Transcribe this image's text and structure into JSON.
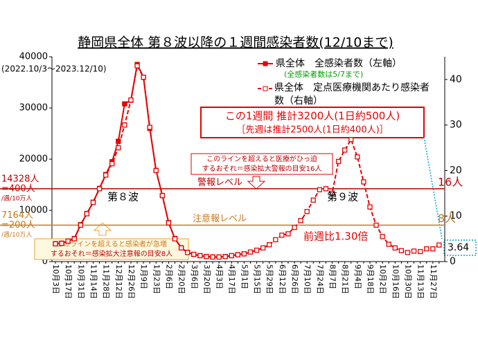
{
  "chart_data": {
    "type": "line",
    "title": "静岡県全体 第８波以降の１週間感染者数(12/10まで)",
    "subtitle": "(2022.10/3～2023.12/10)",
    "categories": [
      "10月3日",
      null,
      "10月17日",
      null,
      "10月31日",
      null,
      "11月14日",
      null,
      "11月28日",
      null,
      "12月12日",
      null,
      "12月26日",
      null,
      "1月9日",
      null,
      "1月23日",
      null,
      "2月6日",
      null,
      "2月20日",
      null,
      "3月6日",
      null,
      "3月20日",
      null,
      "4月3日",
      null,
      "4月17日",
      null,
      "5月1日",
      null,
      "5月15日",
      null,
      "5月29日",
      null,
      "6月12日",
      null,
      "6月26日",
      null,
      "7月10日",
      null,
      "7月24日",
      null,
      "8月7日",
      null,
      "8月21日",
      null,
      "9月4日",
      null,
      "9月18日",
      null,
      "10月2日",
      null,
      "10月16日",
      null,
      "10月30日",
      null,
      "11月13日",
      null,
      "11月27日",
      null
    ],
    "series": [
      {
        "name": "県全体　全感染者数（左軸）",
        "note": "(全感染者数は5/7まで)",
        "color": "#e60000",
        "axis": "y",
        "values": [
          3500,
          3600,
          4000,
          4500,
          7200,
          9400,
          11600,
          14300,
          17000,
          19500,
          23500,
          30800,
          31500,
          38500,
          36000,
          26000,
          17800,
          12900,
          7600,
          4500,
          2700,
          1800,
          1400,
          1150,
          1000,
          900,
          900,
          1000,
          1150,
          1350,
          1500,
          null,
          null,
          null,
          null,
          null,
          null,
          null,
          null,
          null,
          null,
          null,
          null,
          null,
          null,
          null,
          null,
          null,
          null,
          null,
          null,
          null,
          null,
          null,
          null,
          null,
          null,
          null,
          null,
          null,
          null,
          null
        ]
      },
      {
        "name": "県全体　定点医療機関あたり感染者数（右軸）",
        "color": "#e60000",
        "axis": "y2",
        "values": [
          3.9,
          4.0,
          4.5,
          5.0,
          8.0,
          10.5,
          13.0,
          16.0,
          19.0,
          21.5,
          25.0,
          30.0,
          35.5,
          43.0,
          40.5,
          29.5,
          20.0,
          14.5,
          8.5,
          5.0,
          3.0,
          2.0,
          1.6,
          1.3,
          1.1,
          1.0,
          1.0,
          1.1,
          1.3,
          1.5,
          1.7,
          2.1,
          2.5,
          3.0,
          3.7,
          4.8,
          5.8,
          6.1,
          7.5,
          9.0,
          11.0,
          13.5,
          15.8,
          16.0,
          15.0,
          22.0,
          24.5,
          26.8,
          23.0,
          17.5,
          12.0,
          8.0,
          5.5,
          3.8,
          3.0,
          2.4,
          2.0,
          2.3,
          2.2,
          2.8,
          2.8,
          3.64
        ]
      }
    ],
    "ylim": [
      0,
      40000
    ],
    "yticks": [
      0,
      10000,
      20000,
      30000,
      40000
    ],
    "y2lim": [
      0,
      45
    ],
    "y2ticks": [
      0,
      10,
      20,
      30,
      40
    ],
    "thresholds": [
      {
        "value": 16,
        "name": "警報レベル",
        "label": "16人",
        "color": "#c00000",
        "left_label": [
          "14328人",
          "=400人",
          "/週/10万人"
        ],
        "note": [
          "このラインを超えると医療がひっ迫",
          "するおそれ＝感染拡大警報の目安16人"
        ]
      },
      {
        "value": 8,
        "name": "注意報レベル",
        "label": "8人",
        "color": "#c87a1e",
        "left_label": [
          "7164人",
          "=200人",
          "/週/10万人"
        ],
        "note": [
          "このラインを超えると感染者が急増",
          "するおそれ＝感染拡大注意報の目安8人"
        ]
      }
    ],
    "callout": [
      "この1週間 推計3200人(1日約500人)",
      "［先週は推計2500人(1日約400人)］"
    ],
    "annotations": [
      "第８波",
      "第９波",
      "前週比1.30倍"
    ]
  }
}
